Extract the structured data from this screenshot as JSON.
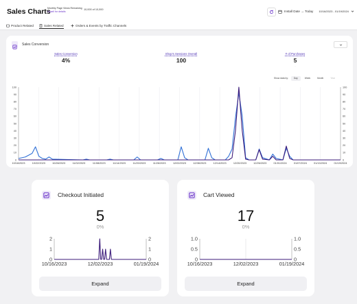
{
  "header": {
    "title": "Sales Charts",
    "quota_label": "Monthly Page Views Remaining",
    "quota_link": "Upsell for details",
    "quota_value": "10,000 of 10,000",
    "install_label": "Install Date → Today",
    "date_range": "10/16/2023 - 01/19/2024"
  },
  "tabs": [
    {
      "label": "Product Related",
      "icon": "box-icon"
    },
    {
      "label": "Sales Related",
      "icon": "receipt-icon",
      "active": true
    },
    {
      "label": "Orders & Events by Traffic Channels",
      "icon": "plus-icon"
    }
  ],
  "sales_conversion": {
    "title": "Sales Conversion",
    "metrics": [
      {
        "label": "Sales Conversion",
        "value": "4%",
        "delta": "-"
      },
      {
        "label": "Shop's Sessions Overall",
        "value": "100",
        "delta": "-"
      },
      {
        "label": "# of Purchases",
        "value": "5",
        "delta": "-"
      }
    ],
    "show_by_label": "Show data by:",
    "show_by_options": [
      {
        "label": "Day",
        "selected": true
      },
      {
        "label": "Week"
      },
      {
        "label": "Month"
      },
      {
        "label": "Year",
        "disabled": true
      }
    ],
    "colors": {
      "sessions": "#2e6fd6",
      "purchases": "#3b1a7a"
    }
  },
  "chart_data": [
    {
      "type": "line",
      "ylim": [
        0,
        100
      ],
      "yticks": [
        0,
        10,
        20,
        30,
        40,
        50,
        60,
        70,
        80,
        90,
        100
      ],
      "x_tick_labels": [
        "10/16/2023",
        "10/22/2023",
        "10/28/2023",
        "11/02/2023",
        "11/08/2023",
        "11/14/2023",
        "11/20/2023",
        "11/26/2023",
        "12/02/2023",
        "12/08/2023",
        "12/14/2023",
        "12/20/2023",
        "12/26/2023",
        "01/01/2024",
        "01/07/2024",
        "01/13/2024",
        "01/19/2024"
      ],
      "series": [
        {
          "key": "sessions",
          "points": [
            [
              0,
              2
            ],
            [
              2,
              4
            ],
            [
              4,
              9
            ],
            [
              5,
              18
            ],
            [
              6,
              5
            ],
            [
              7,
              2
            ],
            [
              8,
              1
            ],
            [
              9,
              4
            ],
            [
              10,
              1
            ],
            [
              19,
              0
            ],
            [
              20,
              1
            ],
            [
              21,
              0
            ],
            [
              26,
              0
            ],
            [
              27,
              1
            ],
            [
              28,
              0
            ],
            [
              34,
              0
            ],
            [
              35,
              4
            ],
            [
              36,
              0
            ],
            [
              41,
              0
            ],
            [
              42,
              2
            ],
            [
              43,
              0
            ],
            [
              47,
              0
            ],
            [
              48,
              18
            ],
            [
              49,
              3
            ],
            [
              50,
              0
            ],
            [
              55,
              0
            ],
            [
              56,
              16
            ],
            [
              57,
              3
            ],
            [
              58,
              0
            ],
            [
              61,
              0
            ],
            [
              62,
              5
            ],
            [
              63,
              15
            ],
            [
              64,
              58
            ],
            [
              65,
              92
            ],
            [
              66,
              60
            ],
            [
              67,
              3
            ],
            [
              68,
              0
            ],
            [
              70,
              0
            ],
            [
              71,
              15
            ],
            [
              72,
              3
            ],
            [
              74,
              0
            ],
            [
              75,
              8
            ],
            [
              76,
              2
            ],
            [
              78,
              0
            ],
            [
              79,
              16
            ],
            [
              80,
              5
            ],
            [
              81,
              0
            ],
            [
              95,
              0
            ]
          ]
        },
        {
          "key": "purchases",
          "points": [
            [
              0,
              0
            ],
            [
              62,
              0
            ],
            [
              63,
              3
            ],
            [
              64,
              40
            ],
            [
              65,
              100
            ],
            [
              66,
              40
            ],
            [
              67,
              1
            ],
            [
              68,
              0
            ],
            [
              70,
              0
            ],
            [
              71,
              14
            ],
            [
              72,
              1
            ],
            [
              74,
              0
            ],
            [
              75,
              5
            ],
            [
              76,
              0
            ],
            [
              78,
              0
            ],
            [
              79,
              19
            ],
            [
              80,
              2
            ],
            [
              81,
              0
            ],
            [
              95,
              0
            ]
          ]
        }
      ]
    },
    {
      "type": "line",
      "ylim": [
        0,
        2
      ],
      "yticks": [
        0,
        1,
        2
      ],
      "x_tick_labels": [
        "10/16/2023",
        "12/02/2023",
        "01/19/2024"
      ],
      "series": [
        {
          "points": [
            [
              0,
              0
            ],
            [
              46,
              0
            ],
            [
              47,
              2
            ],
            [
              48,
              0
            ],
            [
              49,
              0
            ],
            [
              50,
              1
            ],
            [
              51,
              0
            ],
            [
              52,
              0
            ],
            [
              53,
              1
            ],
            [
              54,
              0
            ],
            [
              57,
              0
            ],
            [
              58,
              1
            ],
            [
              59,
              0
            ],
            [
              95,
              0
            ]
          ]
        }
      ]
    },
    {
      "type": "line",
      "ylim": [
        0,
        1
      ],
      "yticks": [
        "0",
        "0.5",
        "1.0"
      ],
      "x_tick_labels": [
        "10/16/2023",
        "12/02/2023",
        "01/19/2024"
      ],
      "series": [
        {
          "points": [
            [
              0,
              0
            ],
            [
              95,
              0
            ]
          ]
        }
      ]
    }
  ],
  "checkout": {
    "title": "Checkout Initiated",
    "value": "5",
    "pct": "0%",
    "expand": "Expand"
  },
  "cart": {
    "title": "Cart Viewed",
    "value": "17",
    "pct": "0%",
    "expand": "Expand"
  }
}
